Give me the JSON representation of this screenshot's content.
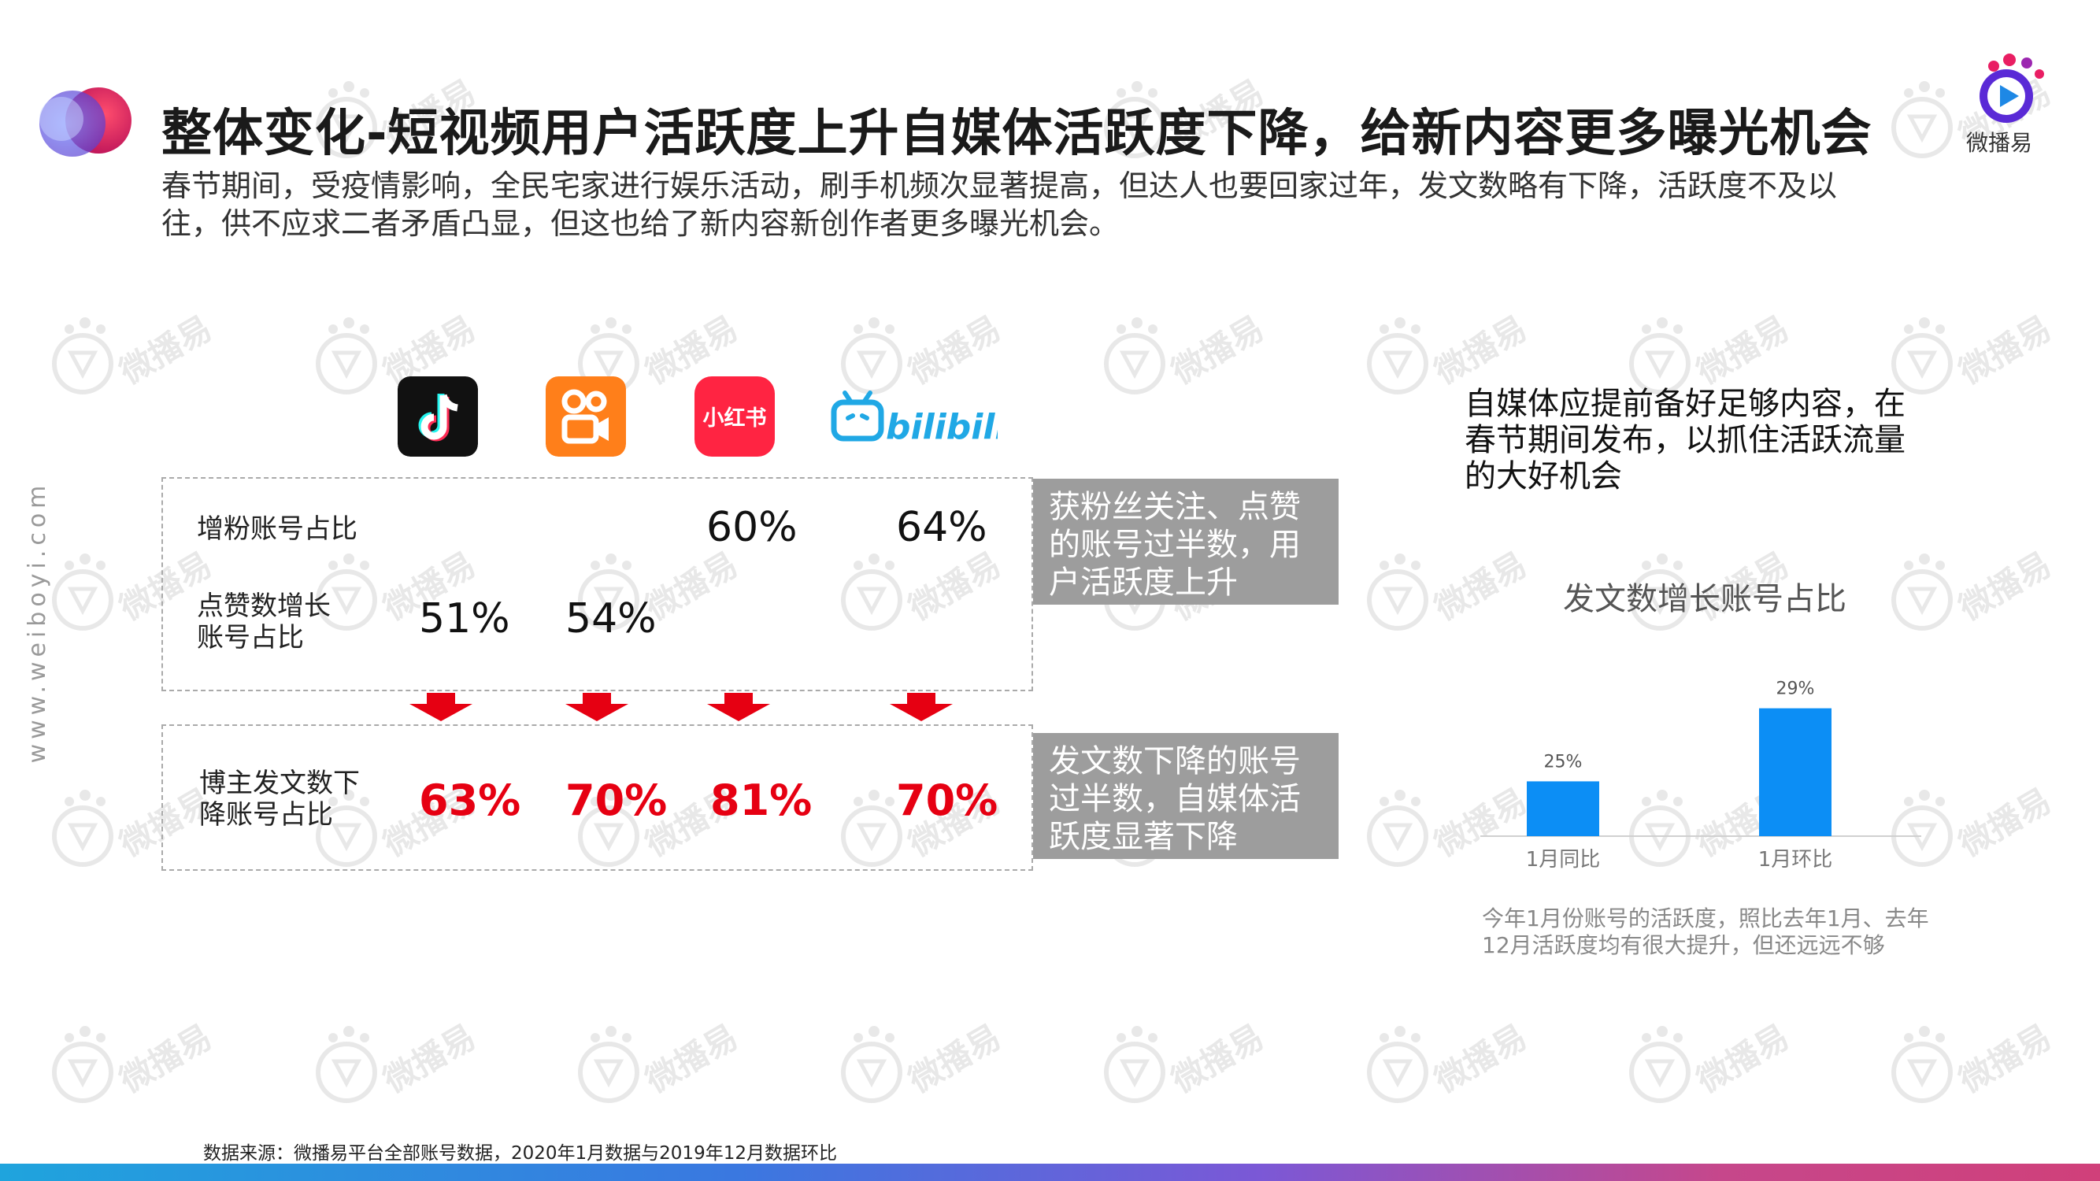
{
  "header": {
    "title": "整体变化-短视频用户活跃度上升自媒体活跃度下降，给新内容更多曝光机会",
    "subtitle": "春节期间，受疫情影响，全民宅家进行娱乐活动，刷手机频次显著提高，但达人也要回家过年，发文数略有下降，活跃度不及以往，供不应求二者矛盾凸显，但这也给了新内容新创作者更多曝光机会。",
    "brand_name": "微播易",
    "site": "www.weiboyi.com"
  },
  "watermark_text": "微播易",
  "platforms": [
    {
      "name": "douyin",
      "icon": "douyin-icon",
      "bg": "#111111"
    },
    {
      "name": "kuaishou",
      "icon": "kuaishou-icon",
      "bg": "#ff7f1a"
    },
    {
      "name": "xiaohongshu",
      "icon": "xiaohongshu-icon",
      "bg": "#ff2442",
      "label": "小红书"
    },
    {
      "name": "bilibili",
      "icon": "bilibili-icon",
      "bg": "#20a8e5",
      "label": "bilibili"
    }
  ],
  "table_top": {
    "rows": [
      {
        "label": "增粉账号占比",
        "values": [
          "",
          "",
          "60%",
          "64%"
        ]
      },
      {
        "label_line1": "点赞数增长",
        "label_line2": "账号占比",
        "values": [
          "51%",
          "54%",
          "",
          ""
        ]
      }
    ],
    "note": "获粉丝关注、点赞的账号过半数，用户活跃度上升"
  },
  "table_bottom": {
    "label_line1": "博主发文数下",
    "label_line2": "降账号占比",
    "values": [
      "63%",
      "70%",
      "81%",
      "70%"
    ],
    "note": "发文数下降的账号过半数，自媒体活跃度显著下降"
  },
  "right_panel": {
    "tip": "自媒体应提前备好足够内容，在春节期间发布，以抓住活跃流量的大好机会",
    "chart_note": "今年1月份账号的活跃度，照比去年1月、去年12月活跃度均有很大提升，但还远远不够"
  },
  "chart_data": {
    "type": "bar",
    "title": "发文数增长账号占比",
    "categories": [
      "1月同比",
      "1月环比"
    ],
    "values": [
      25,
      29
    ],
    "value_labels": [
      "25%",
      "29%"
    ],
    "ylim": [
      0,
      32
    ],
    "color": "#0c8ef5",
    "grid": false,
    "legend": "none"
  },
  "source": "数据来源：微播易平台全部账号数据，2020年1月数据与2019年12月数据环比",
  "colors": {
    "accent_red": "#e60012",
    "note_gray": "#9d9d9d",
    "bar_blue": "#0c8ef5"
  }
}
